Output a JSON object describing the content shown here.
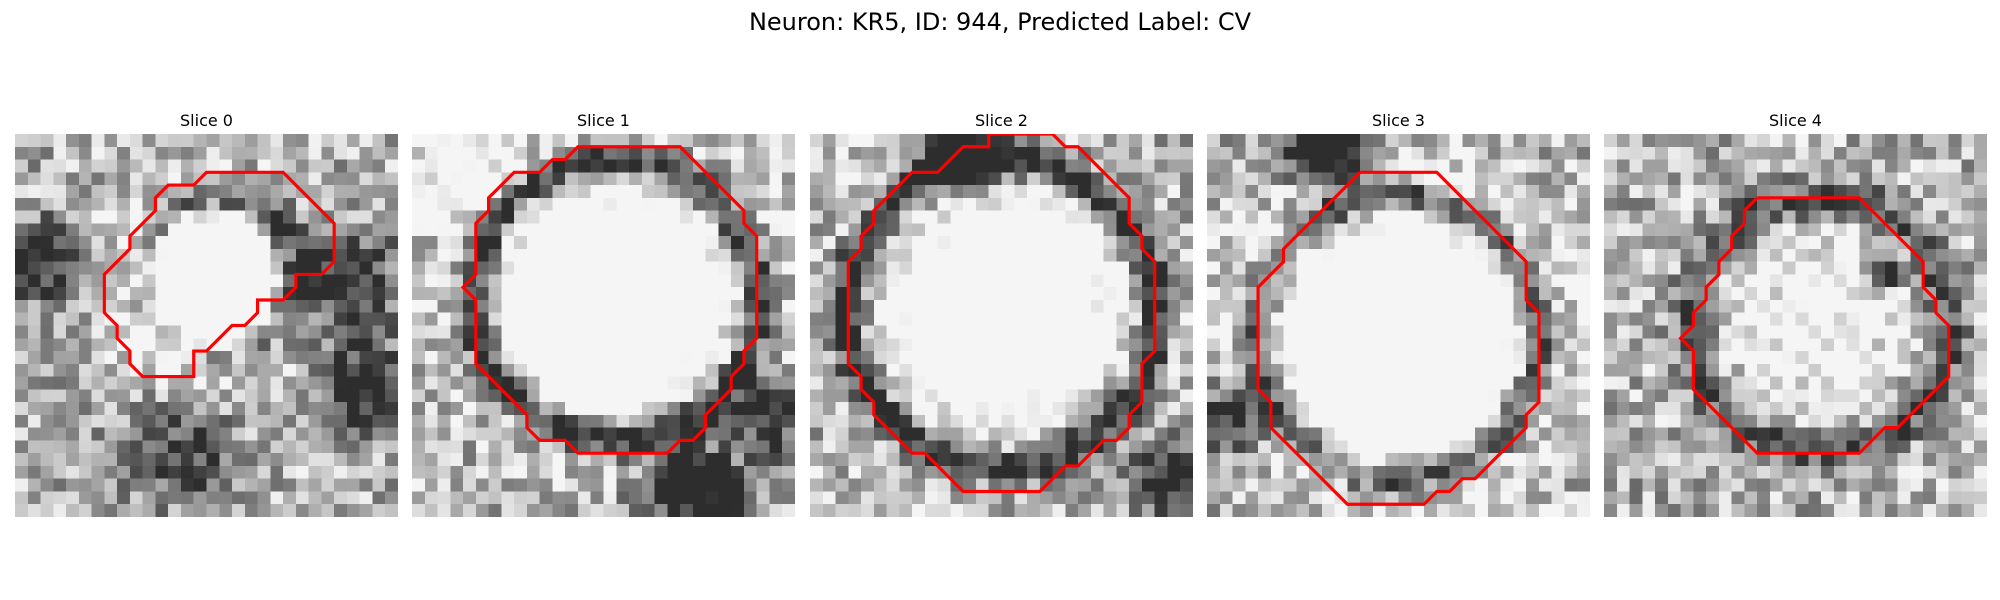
{
  "figure": {
    "title": "Neuron: KR5, ID: 944, Predicted Label: CV"
  },
  "contour_color": "#ff0000",
  "colormap": "gray",
  "panels": [
    {
      "title": "Slice 0",
      "contour": [
        [
          18,
          3
        ],
        [
          21,
          3
        ],
        [
          22,
          4
        ],
        [
          23,
          5
        ],
        [
          24,
          6
        ],
        [
          25,
          7
        ],
        [
          25,
          10
        ],
        [
          24,
          11
        ],
        [
          23,
          11
        ],
        [
          22,
          11
        ],
        [
          22,
          12
        ],
        [
          21,
          13
        ],
        [
          20,
          13
        ],
        [
          19,
          13
        ],
        [
          19,
          14
        ],
        [
          18,
          15
        ],
        [
          17,
          15
        ],
        [
          16,
          16
        ],
        [
          15,
          17
        ],
        [
          14,
          17
        ],
        [
          14,
          19
        ],
        [
          10,
          19
        ],
        [
          9,
          18
        ],
        [
          9,
          17
        ],
        [
          8,
          16
        ],
        [
          8,
          15
        ],
        [
          7,
          14
        ],
        [
          7,
          11
        ],
        [
          8,
          10
        ],
        [
          9,
          9
        ],
        [
          9,
          8
        ],
        [
          10,
          7
        ],
        [
          11,
          6
        ],
        [
          11,
          5
        ],
        [
          12,
          4
        ],
        [
          14,
          4
        ],
        [
          15,
          3
        ],
        [
          18,
          3
        ]
      ]
    },
    {
      "title": "Slice 1",
      "contour": [
        [
          18,
          1
        ],
        [
          21,
          1
        ],
        [
          22,
          2
        ],
        [
          23,
          3
        ],
        [
          24,
          4
        ],
        [
          25,
          5
        ],
        [
          26,
          6
        ],
        [
          26,
          7
        ],
        [
          27,
          8
        ],
        [
          27,
          16
        ],
        [
          26,
          17
        ],
        [
          26,
          18
        ],
        [
          25,
          19
        ],
        [
          25,
          20
        ],
        [
          24,
          21
        ],
        [
          23,
          22
        ],
        [
          23,
          23
        ],
        [
          22,
          24
        ],
        [
          21,
          24
        ],
        [
          20,
          25
        ],
        [
          13,
          25
        ],
        [
          12,
          24
        ],
        [
          10,
          24
        ],
        [
          9,
          23
        ],
        [
          9,
          22
        ],
        [
          8,
          21
        ],
        [
          7,
          20
        ],
        [
          6,
          19
        ],
        [
          5,
          18
        ],
        [
          5,
          13
        ],
        [
          4,
          12
        ],
        [
          5,
          11
        ],
        [
          5,
          7
        ],
        [
          6,
          6
        ],
        [
          6,
          5
        ],
        [
          7,
          4
        ],
        [
          8,
          3
        ],
        [
          10,
          3
        ],
        [
          11,
          2
        ],
        [
          12,
          2
        ],
        [
          13,
          1
        ],
        [
          18,
          1
        ]
      ]
    },
    {
      "title": "Slice 2",
      "contour": [
        [
          14,
          0
        ],
        [
          19,
          0
        ],
        [
          20,
          1
        ],
        [
          21,
          1
        ],
        [
          22,
          2
        ],
        [
          23,
          3
        ],
        [
          24,
          4
        ],
        [
          25,
          5
        ],
        [
          25,
          7
        ],
        [
          26,
          8
        ],
        [
          26,
          9
        ],
        [
          27,
          10
        ],
        [
          27,
          17
        ],
        [
          26,
          18
        ],
        [
          26,
          21
        ],
        [
          25,
          22
        ],
        [
          25,
          23
        ],
        [
          24,
          24
        ],
        [
          23,
          24
        ],
        [
          22,
          25
        ],
        [
          21,
          26
        ],
        [
          20,
          26
        ],
        [
          19,
          27
        ],
        [
          18,
          28
        ],
        [
          12,
          28
        ],
        [
          11,
          27
        ],
        [
          10,
          26
        ],
        [
          9,
          25
        ],
        [
          8,
          25
        ],
        [
          7,
          24
        ],
        [
          6,
          23
        ],
        [
          5,
          22
        ],
        [
          5,
          21
        ],
        [
          4,
          20
        ],
        [
          4,
          19
        ],
        [
          3,
          18
        ],
        [
          3,
          10
        ],
        [
          4,
          9
        ],
        [
          4,
          8
        ],
        [
          5,
          7
        ],
        [
          5,
          6
        ],
        [
          6,
          5
        ],
        [
          7,
          4
        ],
        [
          8,
          3
        ],
        [
          10,
          3
        ],
        [
          11,
          2
        ],
        [
          12,
          1
        ],
        [
          14,
          1
        ],
        [
          14,
          0
        ]
      ]
    },
    {
      "title": "Slice 3",
      "contour": [
        [
          12,
          3
        ],
        [
          18,
          3
        ],
        [
          19,
          4
        ],
        [
          20,
          5
        ],
        [
          21,
          6
        ],
        [
          22,
          7
        ],
        [
          23,
          8
        ],
        [
          24,
          9
        ],
        [
          25,
          10
        ],
        [
          25,
          13
        ],
        [
          26,
          14
        ],
        [
          26,
          21
        ],
        [
          25,
          22
        ],
        [
          25,
          23
        ],
        [
          24,
          24
        ],
        [
          23,
          25
        ],
        [
          22,
          26
        ],
        [
          21,
          27
        ],
        [
          20,
          27
        ],
        [
          19,
          28
        ],
        [
          18,
          28
        ],
        [
          17,
          29
        ],
        [
          11,
          29
        ],
        [
          10,
          28
        ],
        [
          9,
          27
        ],
        [
          8,
          26
        ],
        [
          7,
          25
        ],
        [
          6,
          24
        ],
        [
          5,
          23
        ],
        [
          5,
          21
        ],
        [
          4,
          20
        ],
        [
          4,
          12
        ],
        [
          5,
          11
        ],
        [
          6,
          10
        ],
        [
          6,
          9
        ],
        [
          7,
          8
        ],
        [
          8,
          7
        ],
        [
          9,
          6
        ],
        [
          10,
          5
        ],
        [
          11,
          4
        ],
        [
          12,
          3
        ]
      ]
    },
    {
      "title": "Slice 4",
      "contour": [
        [
          12,
          5
        ],
        [
          20,
          5
        ],
        [
          21,
          6
        ],
        [
          22,
          7
        ],
        [
          23,
          8
        ],
        [
          24,
          9
        ],
        [
          25,
          10
        ],
        [
          25,
          12
        ],
        [
          26,
          13
        ],
        [
          26,
          14
        ],
        [
          27,
          15
        ],
        [
          27,
          19
        ],
        [
          26,
          20
        ],
        [
          25,
          21
        ],
        [
          24,
          22
        ],
        [
          23,
          23
        ],
        [
          22,
          23
        ],
        [
          21,
          24
        ],
        [
          20,
          25
        ],
        [
          12,
          25
        ],
        [
          11,
          24
        ],
        [
          10,
          23
        ],
        [
          9,
          22
        ],
        [
          8,
          21
        ],
        [
          7,
          20
        ],
        [
          7,
          17
        ],
        [
          6,
          16
        ],
        [
          7,
          15
        ],
        [
          7,
          14
        ],
        [
          8,
          13
        ],
        [
          8,
          12
        ],
        [
          9,
          11
        ],
        [
          9,
          10
        ],
        [
          10,
          9
        ],
        [
          10,
          8
        ],
        [
          11,
          7
        ],
        [
          11,
          6
        ],
        [
          12,
          5
        ]
      ]
    }
  ]
}
